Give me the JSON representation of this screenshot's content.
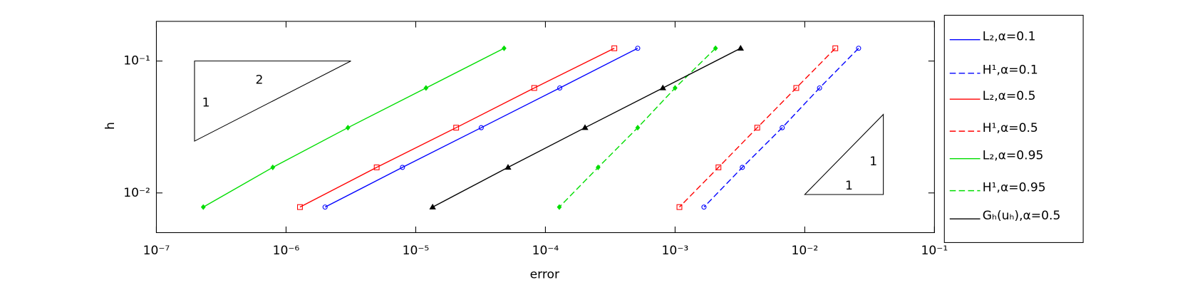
{
  "chart_data": {
    "type": "line",
    "x_label": "error",
    "y_label": "h",
    "xscale": "log",
    "yscale": "log",
    "xlim": [
      1e-07,
      0.1
    ],
    "ylim": [
      0.005,
      0.2
    ],
    "xticks": [
      {
        "value": 1e-07,
        "label": "10⁻⁷"
      },
      {
        "value": 1e-06,
        "label": "10⁻⁶"
      },
      {
        "value": 1e-05,
        "label": "10⁻⁵"
      },
      {
        "value": 0.0001,
        "label": "10⁻⁴"
      },
      {
        "value": 0.001,
        "label": "10⁻³"
      },
      {
        "value": 0.01,
        "label": "10⁻²"
      },
      {
        "value": 0.1,
        "label": "10⁻¹"
      }
    ],
    "yticks": [
      {
        "value": 0.01,
        "label": "10⁻²"
      },
      {
        "value": 0.1,
        "label": "10⁻¹"
      }
    ],
    "legend": "outside-right",
    "annotations": [
      "2",
      "1",
      "1",
      "1"
    ],
    "series": [
      {
        "name": "L₂,α=0.1",
        "color": "#0000ff",
        "dash": false,
        "marker": "circle",
        "x": [
          0.000515,
          0.000129,
          3.2e-05,
          7.9e-06,
          2e-06
        ],
        "values": [
          0.125,
          0.0625,
          0.03125,
          0.015625,
          0.0078125
        ]
      },
      {
        "name": "H¹,α=0.1",
        "color": "#0000ff",
        "dash": true,
        "marker": "circle",
        "x": [
          0.026,
          0.013,
          0.0067,
          0.0033,
          0.00167
        ],
        "values": [
          0.125,
          0.0625,
          0.03125,
          0.015625,
          0.0078125
        ]
      },
      {
        "name": "L₂,α=0.5",
        "color": "#ff0000",
        "dash": false,
        "marker": "square",
        "x": [
          0.00034,
          8.2e-05,
          2.05e-05,
          5e-06,
          1.28e-06
        ],
        "values": [
          0.125,
          0.0625,
          0.03125,
          0.015625,
          0.0078125
        ]
      },
      {
        "name": "H¹,α=0.5",
        "color": "#ff0000",
        "dash": true,
        "marker": "square",
        "x": [
          0.0172,
          0.0086,
          0.0043,
          0.00216,
          0.00108
        ],
        "values": [
          0.125,
          0.0625,
          0.03125,
          0.015625,
          0.0078125
        ]
      },
      {
        "name": "L₂,α=0.95",
        "color": "#00dd00",
        "dash": false,
        "marker": "diamond",
        "x": [
          4.8e-05,
          1.2e-05,
          3e-06,
          7.9e-07,
          2.3e-07
        ],
        "values": [
          0.125,
          0.0625,
          0.03125,
          0.015625,
          0.0078125
        ]
      },
      {
        "name": "H¹,α=0.95",
        "color": "#00dd00",
        "dash": true,
        "marker": "diamond",
        "x": [
          0.00205,
          0.001,
          0.000515,
          0.000255,
          0.000128
        ],
        "values": [
          0.125,
          0.0625,
          0.03125,
          0.015625,
          0.0078125
        ]
      },
      {
        "name": "Gₕ(uₕ),α=0.5",
        "color": "#000000",
        "dash": false,
        "marker": "triangle",
        "x": [
          0.0032,
          0.000805,
          0.000202,
          5.15e-05,
          1.35e-05
        ],
        "values": [
          0.125,
          0.0625,
          0.03125,
          0.015625,
          0.0078125
        ]
      }
    ]
  }
}
